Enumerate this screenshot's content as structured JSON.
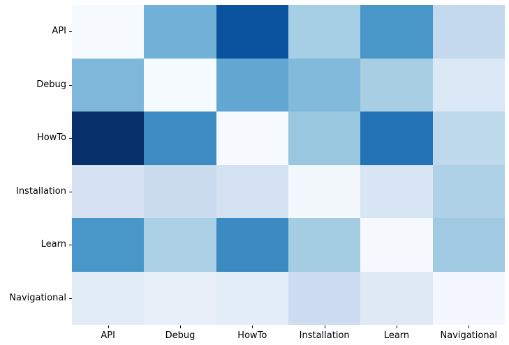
{
  "figure": {
    "background_color": "#ffffff",
    "tick_color": "#000000",
    "label_color": "#000000"
  },
  "chart_data": {
    "type": "heatmap",
    "title": "",
    "xlabel": "",
    "ylabel": "",
    "colormap": "Blues",
    "colormap_endpoints": {
      "low": "#f7fbff",
      "high": "#08306b"
    },
    "legend": "none",
    "grid": false,
    "x_categories": [
      "API",
      "Debug",
      "HowTo",
      "Installation",
      "Learn",
      "Navigational"
    ],
    "y_categories": [
      "API",
      "Debug",
      "HowTo",
      "Installation",
      "Learn",
      "Navigational"
    ],
    "values": [
      [
        0.01,
        0.47,
        0.87,
        0.36,
        0.6,
        0.25
      ],
      [
        0.44,
        0.01,
        0.53,
        0.44,
        0.36,
        0.13
      ],
      [
        1.0,
        0.64,
        0.01,
        0.39,
        0.74,
        0.27
      ],
      [
        0.16,
        0.21,
        0.16,
        0.02,
        0.15,
        0.33
      ],
      [
        0.6,
        0.35,
        0.65,
        0.37,
        0.01,
        0.38
      ],
      [
        0.1,
        0.08,
        0.1,
        0.21,
        0.12,
        0.02
      ]
    ],
    "cell_colors": [
      [
        "#f6fafe",
        "#72b2d8",
        "#0b539e",
        "#a6cee4",
        "#4997c9",
        "#c4d9ee"
      ],
      [
        "#7db8da",
        "#f5fafe",
        "#61a7d2",
        "#82badb",
        "#a8cee4",
        "#dbe8f5"
      ],
      [
        "#08306b",
        "#3d8dc4",
        "#f6fafe",
        "#99c7e0",
        "#2373b6",
        "#bed8ec"
      ],
      [
        "#d7e3f2",
        "#cadbee",
        "#d4e2f1",
        "#f3f8fd",
        "#d8e5f4",
        "#afd1e7"
      ],
      [
        "#4997c9",
        "#abcfe5",
        "#3b8bc2",
        "#a4cce3",
        "#f5f9fe",
        "#9fcae1"
      ],
      [
        "#e2ecf7",
        "#e7f0f9",
        "#e4eef8",
        "#cddcf0",
        "#dfe9f6",
        "#f4f8fe"
      ]
    ]
  }
}
